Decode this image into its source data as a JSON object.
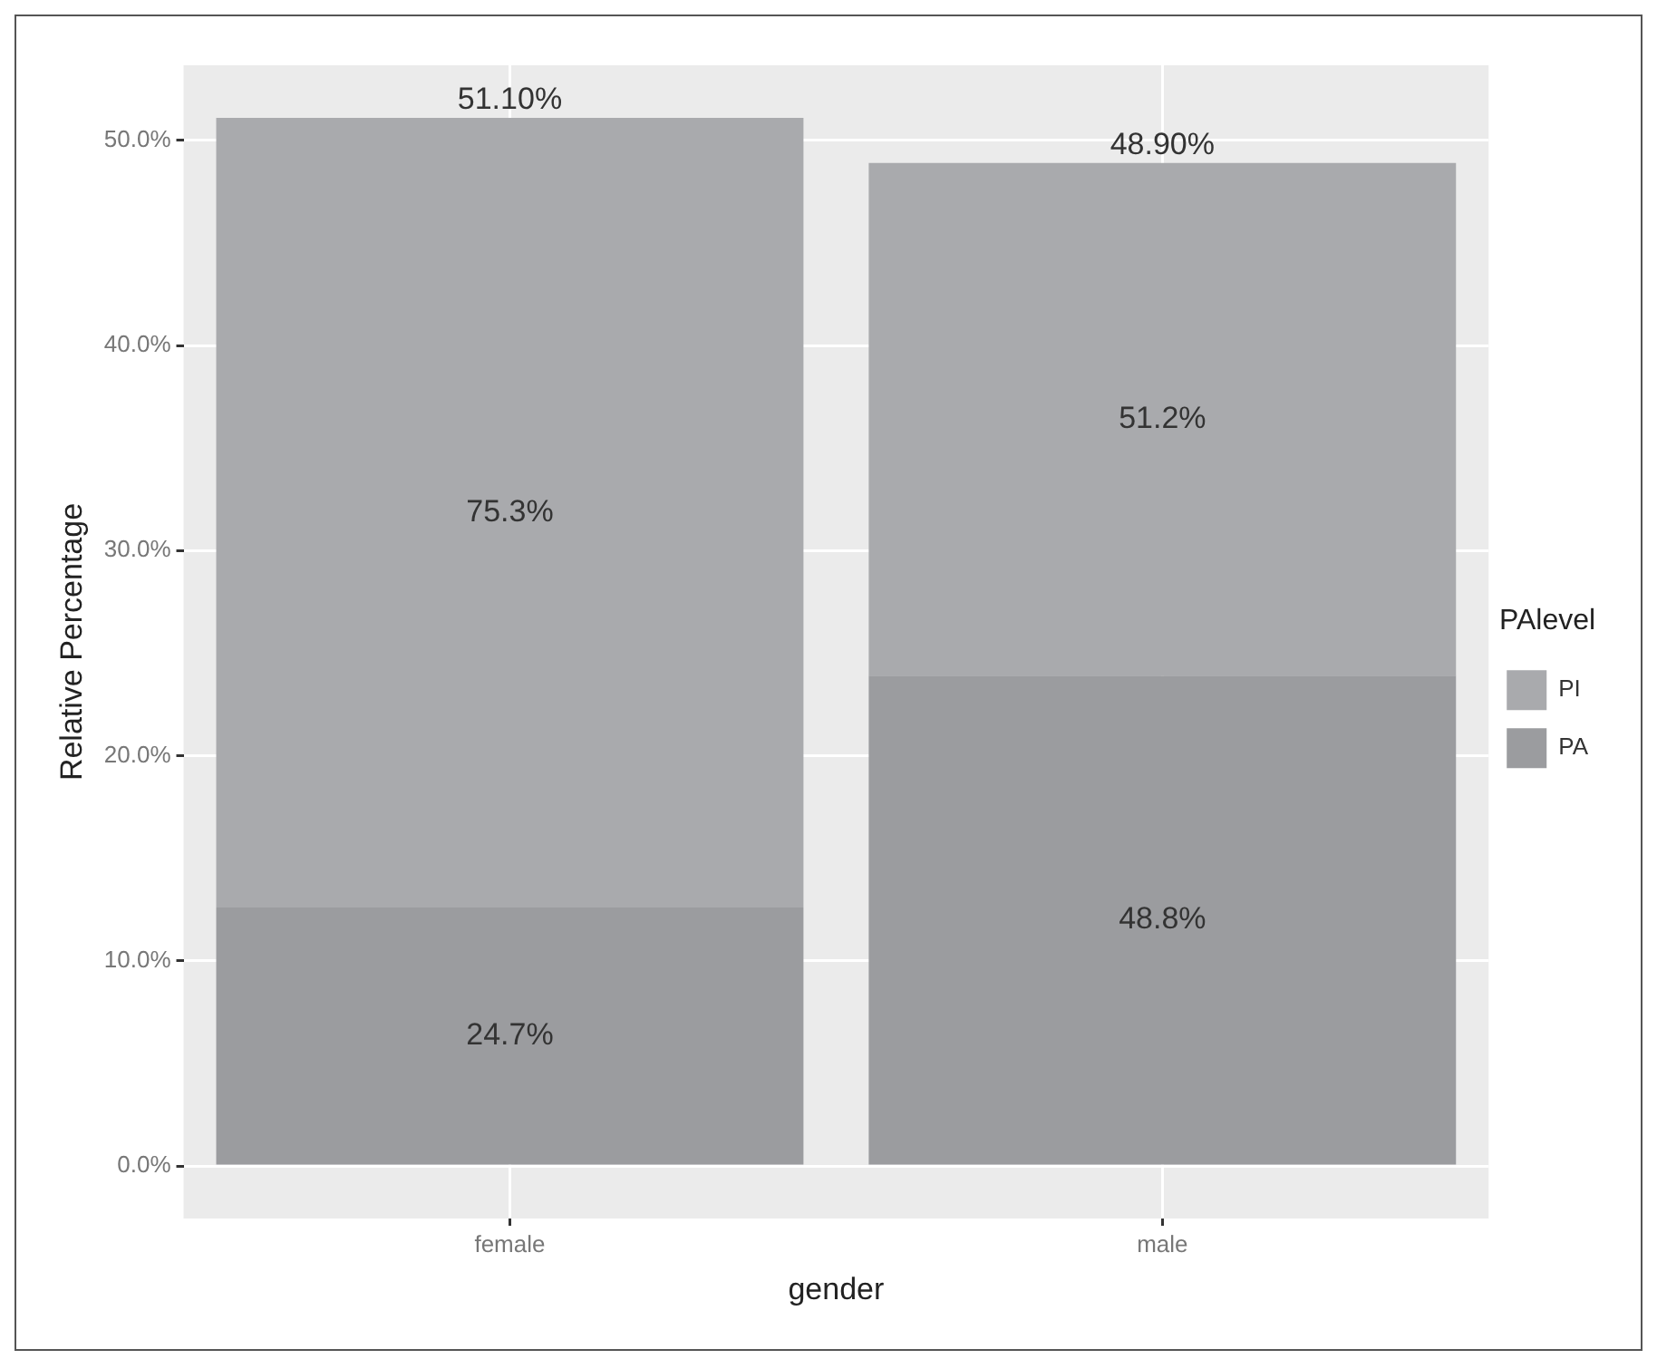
{
  "chart_data": {
    "type": "bar",
    "stacked": true,
    "xlabel": "gender",
    "ylabel": "Relative Percentage",
    "legend_title": "PAlevel",
    "categories": [
      "female",
      "male"
    ],
    "series": [
      {
        "name": "PA",
        "color": "#9b9c9f",
        "values": [
          12.6,
          23.9
        ]
      },
      {
        "name": "PI",
        "color": "#a9aaad",
        "values": [
          38.5,
          25.0
        ]
      }
    ],
    "annotations": [
      "24.7%",
      "48.8%",
      "75.3%",
      "51.2%"
    ],
    "totals": [
      "51.10%",
      "48.90%"
    ],
    "ylim": [
      -2.56,
      53.66
    ],
    "yticks": [
      {
        "value": 0,
        "label": "0.0%"
      },
      {
        "value": 10,
        "label": "10.0%"
      },
      {
        "value": 20,
        "label": "20.0%"
      },
      {
        "value": 30,
        "label": "30.0%"
      },
      {
        "value": 40,
        "label": "40.0%"
      },
      {
        "value": 50,
        "label": "50.0%"
      }
    ],
    "grid": true,
    "legend": "right"
  }
}
